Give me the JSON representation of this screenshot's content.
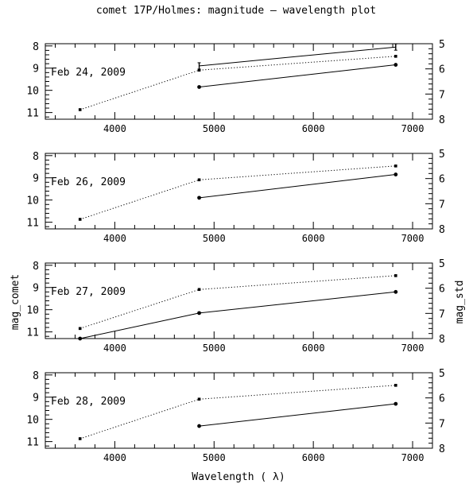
{
  "title": "comet 17P/Holmes: magnitude – wavelength plot",
  "xlabel": "Wavelength ( λ)",
  "ylabel_left": "mag_comet",
  "ylabel_right": "mag_std",
  "chart_data": [
    {
      "type": "line",
      "label": "Feb 24, 2009",
      "xlim": [
        3300,
        7200
      ],
      "xticks": [
        4000,
        5000,
        6000,
        7000
      ],
      "ylim_left": [
        11.3,
        7.9
      ],
      "yticks_left": [
        8,
        9,
        10,
        11
      ],
      "ylim_right": [
        8.0,
        5.0
      ],
      "yticks_right": [
        5,
        6,
        7,
        8
      ],
      "series": [
        {
          "axis": "left",
          "style": "solid",
          "marker": "circle",
          "x": [
            4850,
            6830
          ],
          "y": [
            9.85,
            8.85
          ]
        },
        {
          "axis": "left",
          "style": "solid",
          "marker": "errorbar",
          "x": [
            4850,
            6830
          ],
          "y": [
            8.9,
            8.05
          ]
        },
        {
          "axis": "right",
          "style": "dotted",
          "marker": "square",
          "x": [
            3650,
            4850,
            6830
          ],
          "y": [
            7.62,
            6.05,
            5.5
          ]
        }
      ]
    },
    {
      "type": "line",
      "label": "Feb 26, 2009",
      "xlim": [
        3300,
        7200
      ],
      "xticks": [
        4000,
        5000,
        6000,
        7000
      ],
      "ylim_left": [
        11.3,
        7.9
      ],
      "yticks_left": [
        8,
        9,
        10,
        11
      ],
      "ylim_right": [
        8.0,
        5.0
      ],
      "yticks_right": [
        5,
        6,
        7,
        8
      ],
      "series": [
        {
          "axis": "left",
          "style": "solid",
          "marker": "circle",
          "x": [
            4850,
            6830
          ],
          "y": [
            9.9,
            8.85
          ]
        },
        {
          "axis": "right",
          "style": "dotted",
          "marker": "square",
          "x": [
            3650,
            4850,
            6830
          ],
          "y": [
            7.62,
            6.05,
            5.5
          ]
        }
      ]
    },
    {
      "type": "line",
      "label": "Feb 27, 2009",
      "xlim": [
        3300,
        7200
      ],
      "xticks": [
        4000,
        5000,
        6000,
        7000
      ],
      "ylim_left": [
        11.3,
        7.9
      ],
      "yticks_left": [
        8,
        9,
        10,
        11
      ],
      "ylim_right": [
        8.0,
        5.0
      ],
      "yticks_right": [
        5,
        6,
        7,
        8
      ],
      "series": [
        {
          "axis": "left",
          "style": "solid",
          "marker": "circle",
          "x": [
            3650,
            4850,
            6830
          ],
          "y": [
            11.3,
            10.15,
            9.2
          ]
        },
        {
          "axis": "right",
          "style": "dotted",
          "marker": "square",
          "x": [
            3650,
            4850,
            6830
          ],
          "y": [
            7.6,
            6.05,
            5.5
          ]
        }
      ]
    },
    {
      "type": "line",
      "label": "Feb 28, 2009",
      "xlim": [
        3300,
        7200
      ],
      "xticks": [
        4000,
        5000,
        6000,
        7000
      ],
      "ylim_left": [
        11.3,
        7.9
      ],
      "yticks_left": [
        8,
        9,
        10,
        11
      ],
      "ylim_right": [
        8.0,
        5.0
      ],
      "yticks_right": [
        5,
        6,
        7,
        8
      ],
      "series": [
        {
          "axis": "left",
          "style": "solid",
          "marker": "circle",
          "x": [
            4850,
            6830
          ],
          "y": [
            10.3,
            9.3
          ]
        },
        {
          "axis": "right",
          "style": "dotted",
          "marker": "square",
          "x": [
            3650,
            4850,
            6830
          ],
          "y": [
            7.62,
            6.05,
            5.5
          ]
        }
      ]
    }
  ]
}
